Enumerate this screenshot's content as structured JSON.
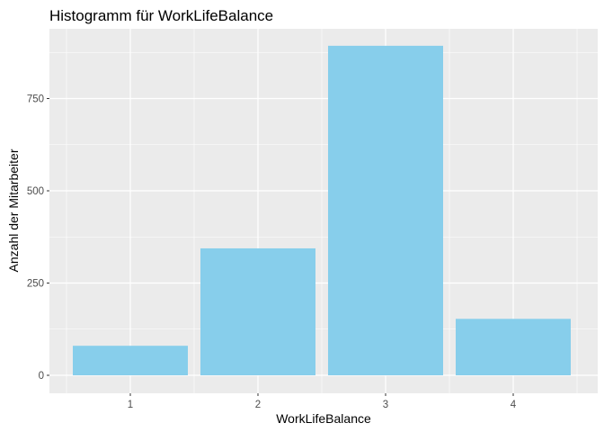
{
  "chart_data": {
    "type": "bar",
    "title": "Histogramm für WorkLifeBalance",
    "xlabel": "WorkLifeBalance",
    "ylabel": "Anzahl der Mitarbeiter",
    "categories": [
      "1",
      "2",
      "3",
      "4"
    ],
    "values": [
      80,
      344,
      893,
      153
    ],
    "ylim": [
      0,
      950
    ],
    "yticks": [
      0,
      250,
      500,
      750
    ],
    "grid": true,
    "bar_color": "#87CEEB",
    "panel_background": "#EBEBEB",
    "grid_color": "#FFFFFF"
  }
}
